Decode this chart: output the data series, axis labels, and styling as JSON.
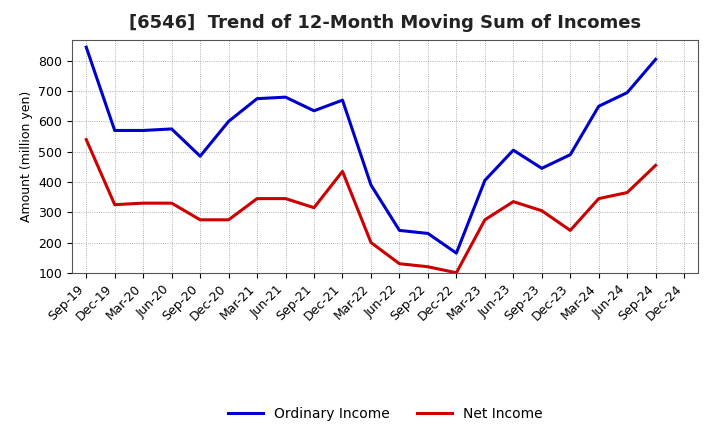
{
  "title": "[6546]  Trend of 12-Month Moving Sum of Incomes",
  "ylabel": "Amount (million yen)",
  "xlabels": [
    "Sep-19",
    "Dec-19",
    "Mar-20",
    "Jun-20",
    "Sep-20",
    "Dec-20",
    "Mar-21",
    "Jun-21",
    "Sep-21",
    "Dec-21",
    "Mar-22",
    "Jun-22",
    "Sep-22",
    "Dec-22",
    "Mar-23",
    "Jun-23",
    "Sep-23",
    "Dec-23",
    "Mar-24",
    "Jun-24",
    "Sep-24",
    "Dec-24"
  ],
  "ordinary_income": [
    845,
    570,
    570,
    575,
    485,
    600,
    675,
    680,
    635,
    670,
    390,
    240,
    230,
    165,
    405,
    505,
    445,
    490,
    650,
    695,
    805,
    null
  ],
  "net_income": [
    540,
    325,
    330,
    330,
    275,
    275,
    345,
    345,
    315,
    435,
    200,
    130,
    120,
    100,
    275,
    335,
    305,
    240,
    345,
    365,
    455,
    null
  ],
  "ordinary_color": "#0000cc",
  "net_color": "#cc0000",
  "ylim": [
    100,
    870
  ],
  "yticks": [
    100,
    200,
    300,
    400,
    500,
    600,
    700,
    800
  ],
  "grid_color": "#999999",
  "bg_color": "#ffffff",
  "title_fontsize": 13,
  "axis_label_fontsize": 9,
  "tick_fontsize": 9,
  "legend_labels": [
    "Ordinary Income",
    "Net Income"
  ],
  "line_width": 2.2
}
